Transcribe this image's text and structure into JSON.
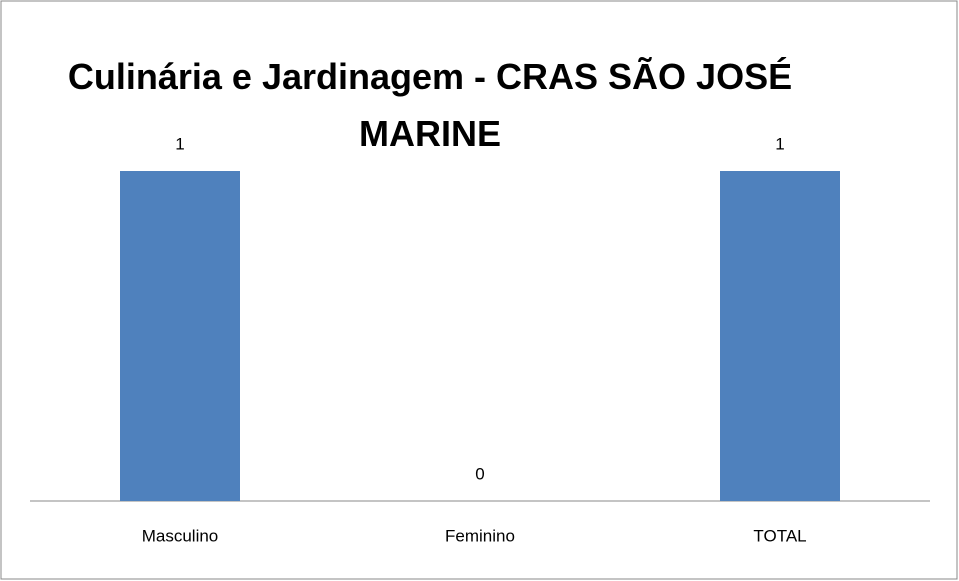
{
  "chart_data": {
    "type": "bar",
    "title": "Culinária e Jardinagem - CRAS SÃO JOSÉ MARINE",
    "categories": [
      "Masculino",
      "Feminino",
      "TOTAL"
    ],
    "values": [
      1,
      0,
      1
    ],
    "color": "#4f81bd",
    "ylim": [
      0,
      1
    ]
  }
}
